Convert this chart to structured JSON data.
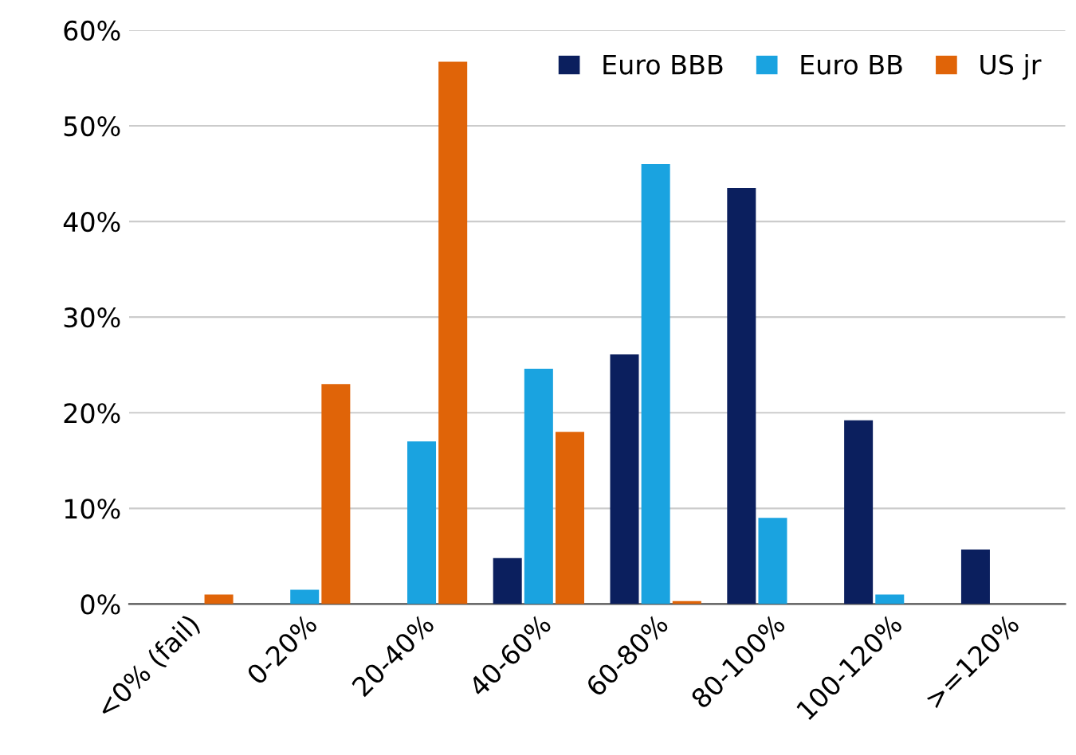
{
  "chart_data": {
    "type": "bar",
    "categories": [
      "<0% (fail)",
      "0-20%",
      "20-40%",
      "40-60%",
      "60-80%",
      "80-100%",
      "100-120%",
      ">=120%"
    ],
    "series": [
      {
        "name": "Euro BBB",
        "color": "#0b1f5e",
        "values": [
          0,
          0,
          0,
          4.8,
          26.1,
          43.5,
          19.2,
          5.7
        ]
      },
      {
        "name": "Euro BB",
        "color": "#1aa3e0",
        "values": [
          0,
          1.5,
          17,
          24.6,
          46,
          9,
          1,
          0
        ]
      },
      {
        "name": "US jr",
        "color": "#e06408",
        "values": [
          1,
          23,
          56.7,
          18,
          0.3,
          0,
          0,
          0
        ]
      }
    ],
    "ylim": [
      0,
      60
    ],
    "yticks": [
      {
        "value": 0,
        "label": "0%"
      },
      {
        "value": 10,
        "label": "10%"
      },
      {
        "value": 20,
        "label": "20%"
      },
      {
        "value": 30,
        "label": "30%"
      },
      {
        "value": 40,
        "label": "40%"
      },
      {
        "value": 50,
        "label": "50%"
      },
      {
        "value": 60,
        "label": "60%"
      }
    ],
    "grid": "y",
    "legend": "top right"
  }
}
